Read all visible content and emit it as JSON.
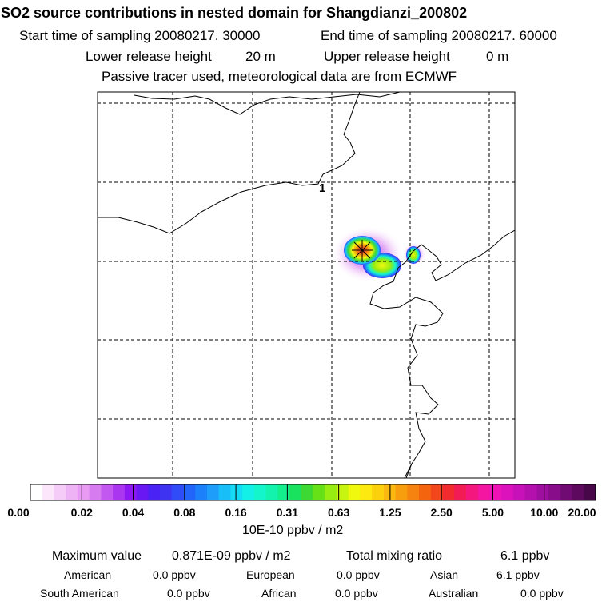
{
  "header": {
    "title": "SO2 source contributions in nested domain for Shangdianzi_200802",
    "start_label": "Start time of sampling 20080217. 30000",
    "end_label": "End time of sampling 20080217. 60000",
    "lower_label": "Lower release height",
    "lower_value": "20 m",
    "upper_label": "Upper release height",
    "upper_value": "0 m",
    "tracer_note": "Passive tracer used, meteorological data are from ECMWF"
  },
  "map": {
    "site_marker_label": "1"
  },
  "colorbar": {
    "tick_labels": [
      "0.00",
      "0.02",
      "0.04",
      "0.08",
      "0.16",
      "0.31",
      "0.63",
      "1.25",
      "2.50",
      "5.00",
      "10.00",
      "20.00"
    ],
    "colors": [
      "#ffffff",
      "#fbe6fb",
      "#f5ccf7",
      "#eeb3f5",
      "#e89bf2",
      "#d77cf0",
      "#c358f0",
      "#ab36f0",
      "#8d18f3",
      "#6a18f3",
      "#4a22f5",
      "#3f33f2",
      "#2f4cf8",
      "#2364fa",
      "#1b80fa",
      "#1e9efa",
      "#17bef7",
      "#14dbf5",
      "#13f0e8",
      "#14f5cc",
      "#13f3ad",
      "#12ef8c",
      "#19e35e",
      "#3dd932",
      "#66e117",
      "#97ec11",
      "#c7f50f",
      "#f1f80f",
      "#fde80f",
      "#fbd10e",
      "#f9b90e",
      "#f79e0e",
      "#f6820f",
      "#f4640e",
      "#f3461c",
      "#f22b2e",
      "#f31b55",
      "#f4177d",
      "#f416a0",
      "#ed13b6",
      "#dc12bd",
      "#c811b8",
      "#b410ad",
      "#9e0f9f",
      "#880d8b",
      "#710b74",
      "#5c095e",
      "#480748"
    ],
    "unit": "10E-10 ppbv / m2"
  },
  "stats": {
    "max_label": "Maximum value",
    "max_value": "0.871E-09 ppbv / m2",
    "total_label": "Total mixing ratio",
    "total_value": "6.1 ppbv"
  },
  "regions": [
    {
      "name": "American",
      "value": "0.0 ppbv"
    },
    {
      "name": "European",
      "value": "0.0 ppbv"
    },
    {
      "name": "Asian",
      "value": "6.1 ppbv"
    },
    {
      "name": "South American",
      "value": "0.0 ppbv"
    },
    {
      "name": "African",
      "value": "0.0 ppbv"
    },
    {
      "name": "Australian",
      "value": "0.0 ppbv"
    }
  ]
}
